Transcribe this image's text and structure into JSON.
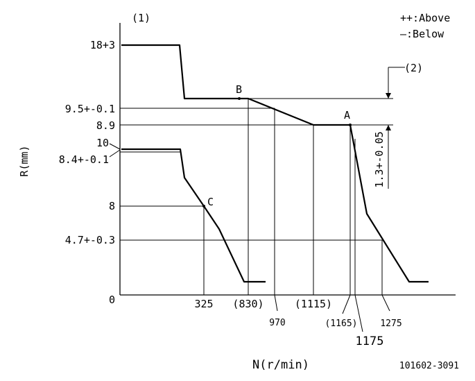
{
  "diagram_id": "101602-3091",
  "x_axis_label": "N(r/min)",
  "y_axis_label": "R(mm)",
  "legend": {
    "above": "++:Above",
    "below": "—:Below"
  },
  "notes": {
    "note1": "(1)",
    "note2": "(2)"
  },
  "points": {
    "a": "A",
    "b": "B",
    "c": "C"
  },
  "y_ticks": {
    "t18": "18+3",
    "t95": "9.5+-0.1",
    "t89": "8.9",
    "t10": "10",
    "t84": "8.4+-0.1",
    "t8": "8",
    "t47": "4.7+-0.3",
    "t0": "0"
  },
  "x_ticks": {
    "n325": "325",
    "n830": "(830)",
    "n970": "970",
    "n1115": "(1115)",
    "n1165": "(1165)",
    "n1175": "1175",
    "n1275": "1275"
  },
  "dimension": "1.3+-0.05",
  "chart_data": {
    "type": "line",
    "xlabel": "N(r/min)",
    "ylabel": "R(mm)",
    "x_ticks": [
      "325",
      "(830)",
      "970",
      "(1115)",
      "(1165)",
      "1175",
      "1275"
    ],
    "y_ticks": [
      "0",
      "4.7+-0.3",
      "8",
      "8.4+-0.1",
      "10",
      "8.9",
      "9.5+-0.1",
      "18+3"
    ],
    "points": [
      {
        "name": "A",
        "x": 1165,
        "y": 8.9
      },
      {
        "name": "B",
        "x": 830,
        "y": 9.5
      },
      {
        "name": "C",
        "x": 325,
        "y": 8
      }
    ]
  }
}
